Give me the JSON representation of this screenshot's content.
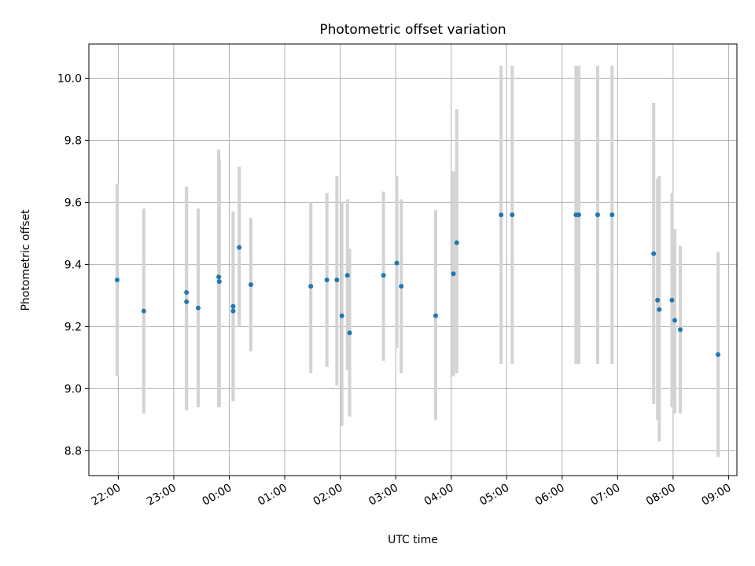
{
  "chart_data": {
    "type": "scatter",
    "title": "Photometric offset variation",
    "xlabel": "UTC time",
    "ylabel": "Photometric offset",
    "x_unit": "hour",
    "xlim": [
      21.47,
      33.15
    ],
    "ylim": [
      8.72,
      10.11
    ],
    "x_ticks": [
      {
        "value": 22,
        "label": "22:00"
      },
      {
        "value": 23,
        "label": "23:00"
      },
      {
        "value": 24,
        "label": "00:00"
      },
      {
        "value": 25,
        "label": "01:00"
      },
      {
        "value": 26,
        "label": "02:00"
      },
      {
        "value": 27,
        "label": "03:00"
      },
      {
        "value": 28,
        "label": "04:00"
      },
      {
        "value": 29,
        "label": "05:00"
      },
      {
        "value": 30,
        "label": "06:00"
      },
      {
        "value": 31,
        "label": "07:00"
      },
      {
        "value": 32,
        "label": "08:00"
      },
      {
        "value": 33,
        "label": "09:00"
      }
    ],
    "y_ticks": [
      {
        "value": 8.8,
        "label": "8.8"
      },
      {
        "value": 9.0,
        "label": "9.0"
      },
      {
        "value": 9.2,
        "label": "9.2"
      },
      {
        "value": 9.4,
        "label": "9.4"
      },
      {
        "value": 9.6,
        "label": "9.6"
      },
      {
        "value": 9.8,
        "label": "9.8"
      },
      {
        "value": 10.0,
        "label": "10.0"
      }
    ],
    "grid": true,
    "series": [
      {
        "marker_color": "#1f77b4",
        "errorbar_color": "#d3d3d3",
        "points": [
          {
            "x": 21.98,
            "y": 9.35,
            "lo": 9.04,
            "hi": 9.66
          },
          {
            "x": 22.46,
            "y": 9.25,
            "lo": 8.92,
            "hi": 9.58
          },
          {
            "x": 23.23,
            "y": 9.31,
            "lo": 8.93,
            "hi": 9.65
          },
          {
            "x": 23.23,
            "y": 9.28,
            "lo": 8.93,
            "hi": 9.65
          },
          {
            "x": 23.44,
            "y": 9.26,
            "lo": 8.94,
            "hi": 9.58
          },
          {
            "x": 23.81,
            "y": 9.36,
            "lo": 8.94,
            "hi": 9.77
          },
          {
            "x": 23.82,
            "y": 9.345,
            "lo": 8.94,
            "hi": 9.74
          },
          {
            "x": 24.07,
            "y": 9.265,
            "lo": 8.96,
            "hi": 9.57
          },
          {
            "x": 24.07,
            "y": 9.25,
            "lo": 8.96,
            "hi": 9.57
          },
          {
            "x": 24.18,
            "y": 9.455,
            "lo": 9.2,
            "hi": 9.715
          },
          {
            "x": 24.39,
            "y": 9.335,
            "lo": 9.12,
            "hi": 9.55
          },
          {
            "x": 25.47,
            "y": 9.33,
            "lo": 9.05,
            "hi": 9.6
          },
          {
            "x": 25.76,
            "y": 9.35,
            "lo": 9.07,
            "hi": 9.63
          },
          {
            "x": 25.94,
            "y": 9.35,
            "lo": 9.01,
            "hi": 9.685
          },
          {
            "x": 26.03,
            "y": 9.235,
            "lo": 8.88,
            "hi": 9.6
          },
          {
            "x": 26.13,
            "y": 9.365,
            "lo": 9.06,
            "hi": 9.61
          },
          {
            "x": 26.17,
            "y": 9.18,
            "lo": 8.91,
            "hi": 9.45
          },
          {
            "x": 26.78,
            "y": 9.365,
            "lo": 9.09,
            "hi": 9.635
          },
          {
            "x": 27.02,
            "y": 9.405,
            "lo": 9.13,
            "hi": 9.685
          },
          {
            "x": 27.1,
            "y": 9.33,
            "lo": 9.05,
            "hi": 9.61
          },
          {
            "x": 27.72,
            "y": 9.235,
            "lo": 8.9,
            "hi": 9.575
          },
          {
            "x": 28.04,
            "y": 9.37,
            "lo": 9.04,
            "hi": 9.7
          },
          {
            "x": 28.1,
            "y": 9.47,
            "lo": 9.05,
            "hi": 9.9
          },
          {
            "x": 28.9,
            "y": 9.56,
            "lo": 9.08,
            "hi": 10.04
          },
          {
            "x": 29.1,
            "y": 9.56,
            "lo": 9.08,
            "hi": 10.04
          },
          {
            "x": 30.25,
            "y": 9.56,
            "lo": 9.08,
            "hi": 10.04
          },
          {
            "x": 30.3,
            "y": 9.56,
            "lo": 9.08,
            "hi": 10.04
          },
          {
            "x": 30.64,
            "y": 9.56,
            "lo": 9.08,
            "hi": 10.04
          },
          {
            "x": 30.9,
            "y": 9.56,
            "lo": 9.08,
            "hi": 10.04
          },
          {
            "x": 31.65,
            "y": 9.435,
            "lo": 8.95,
            "hi": 9.92
          },
          {
            "x": 31.72,
            "y": 9.285,
            "lo": 8.9,
            "hi": 9.675
          },
          {
            "x": 31.75,
            "y": 9.255,
            "lo": 8.83,
            "hi": 9.685
          },
          {
            "x": 31.98,
            "y": 9.285,
            "lo": 8.94,
            "hi": 9.63
          },
          {
            "x": 32.03,
            "y": 9.22,
            "lo": 8.92,
            "hi": 9.515
          },
          {
            "x": 32.13,
            "y": 9.19,
            "lo": 8.92,
            "hi": 9.46
          },
          {
            "x": 32.81,
            "y": 9.11,
            "lo": 8.78,
            "hi": 9.44
          }
        ]
      }
    ]
  }
}
